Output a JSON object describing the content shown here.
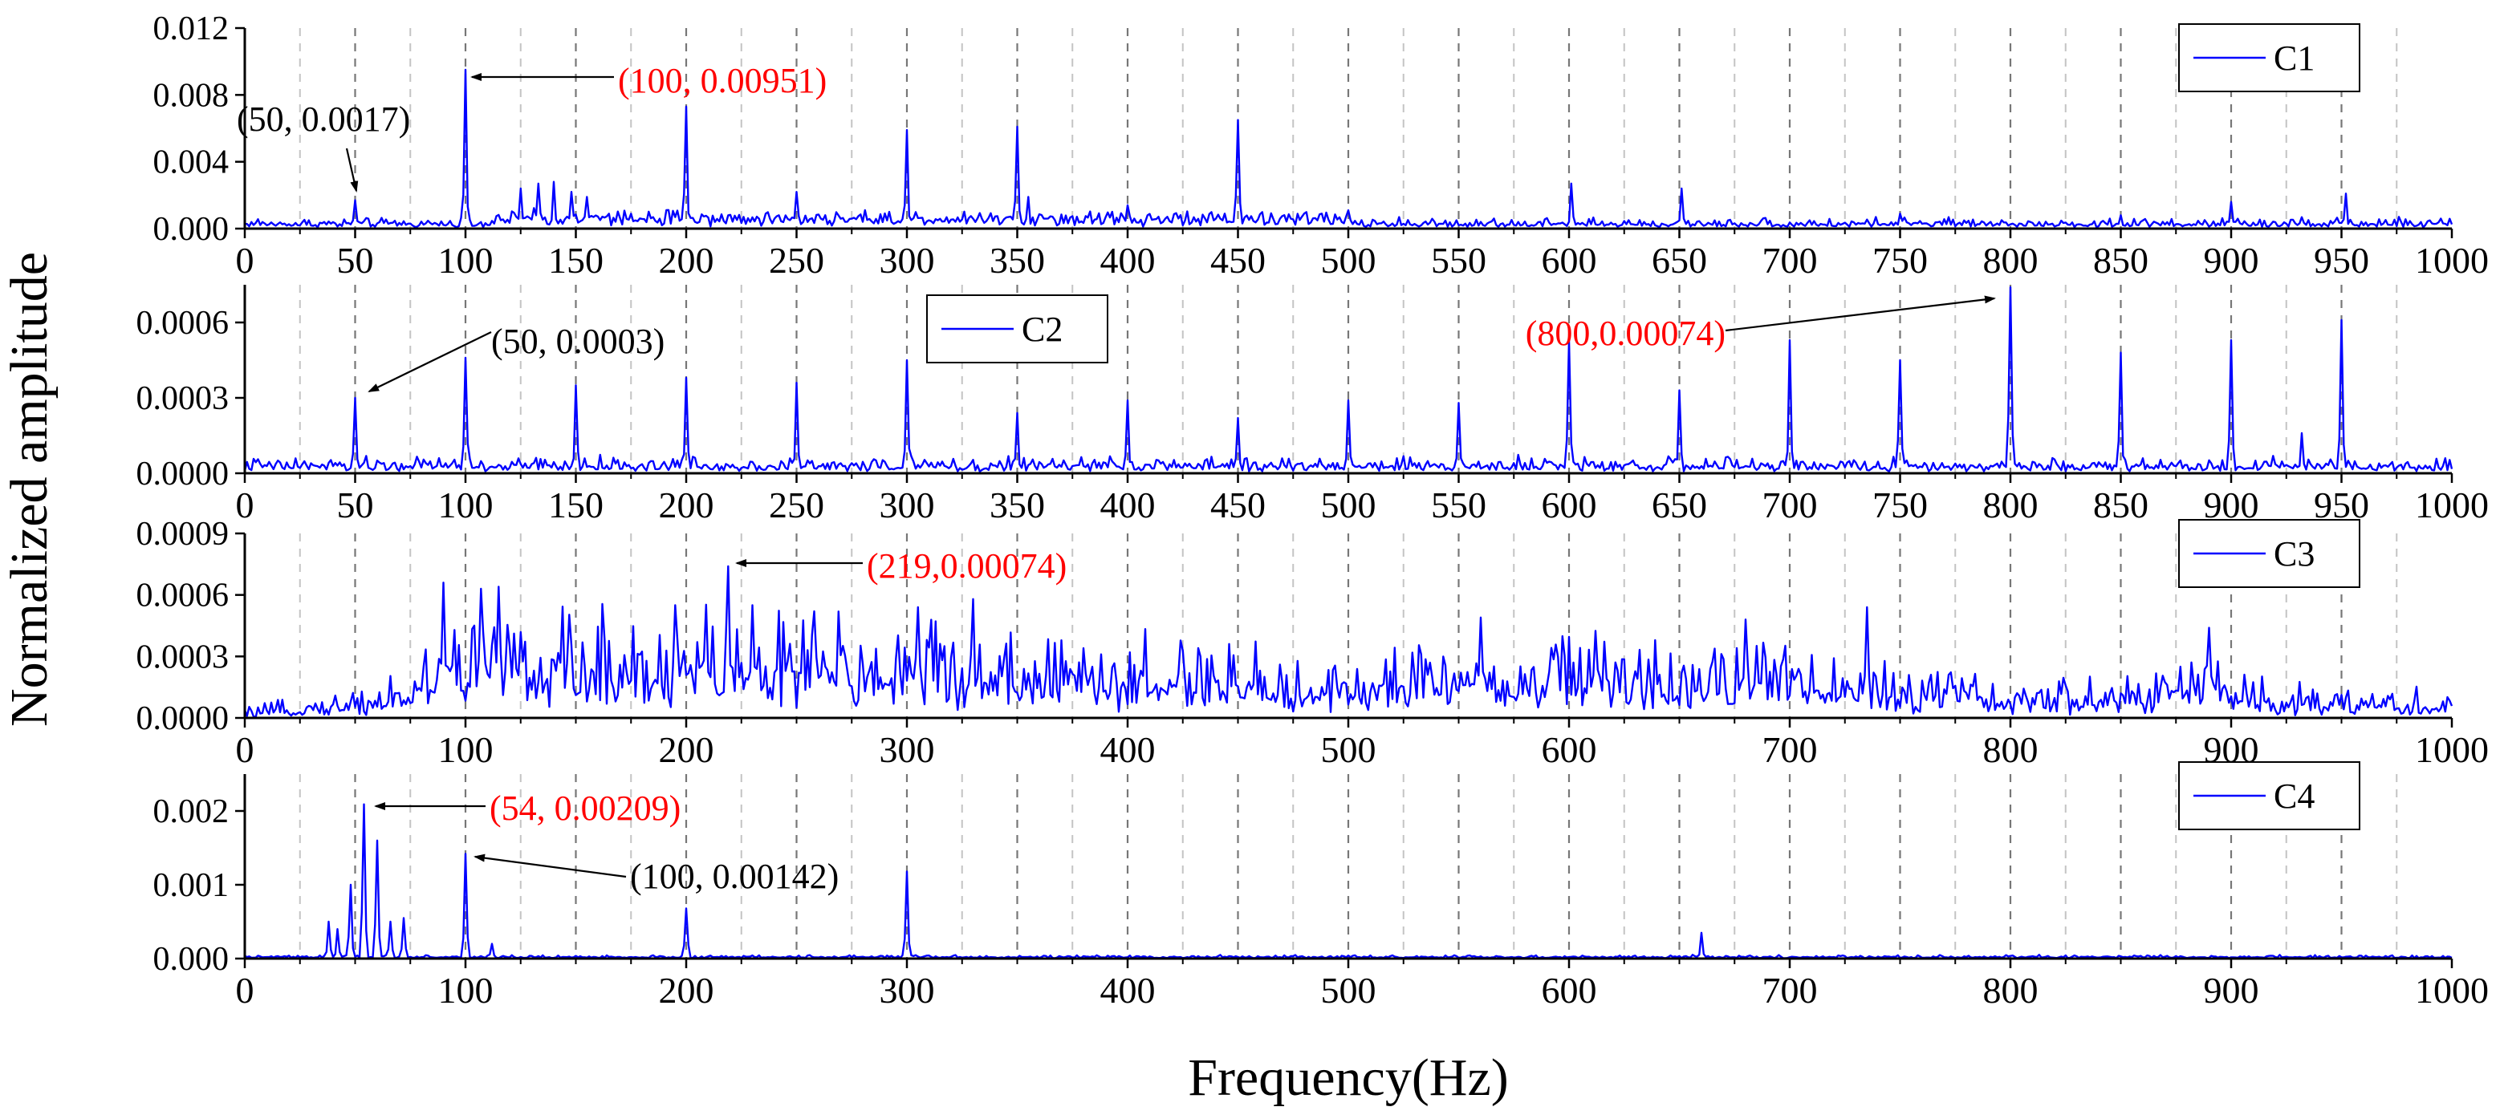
{
  "figure": {
    "ylabel": "Normalized amplitude",
    "xlabel": "Frequency(Hz)"
  },
  "colors": {
    "series": "#0000ff",
    "highlight": "#ff0000",
    "text": "#000000",
    "grid": "#888888"
  },
  "chart_data": [
    {
      "type": "line",
      "name": "C1",
      "legend": "C1",
      "legend_pos": "top-right",
      "x_range": [
        0,
        1000
      ],
      "ylim": [
        0,
        0.012
      ],
      "x_ticks": [
        "0",
        "50",
        "100",
        "150",
        "200",
        "250",
        "300",
        "350",
        "400",
        "450",
        "500",
        "550",
        "600",
        "650",
        "700",
        "750",
        "800",
        "850",
        "900",
        "950",
        "1000"
      ],
      "y_ticks": [
        "0.000",
        "0.004",
        "0.008",
        "0.012"
      ],
      "y_tick_values": [
        0,
        0.004,
        0.008,
        0.012
      ],
      "noise": 0.0007,
      "peaks": [
        [
          50,
          0.0017
        ],
        [
          100,
          0.00951
        ],
        [
          125,
          0.0024
        ],
        [
          133,
          0.0027
        ],
        [
          140,
          0.0028
        ],
        [
          148,
          0.0022
        ],
        [
          155,
          0.0019
        ],
        [
          200,
          0.0073
        ],
        [
          250,
          0.0022
        ],
        [
          300,
          0.0059
        ],
        [
          350,
          0.0061
        ],
        [
          355,
          0.0019
        ],
        [
          400,
          0.0014
        ],
        [
          450,
          0.0065
        ],
        [
          500,
          0.0011
        ],
        [
          601,
          0.0027
        ],
        [
          651,
          0.0024
        ],
        [
          750,
          0.0009
        ],
        [
          850,
          0.0008
        ],
        [
          900,
          0.0016
        ],
        [
          952,
          0.0021
        ]
      ],
      "annotations": [
        {
          "text": "(100, 0.00951)",
          "color": "red",
          "x": 100,
          "y": 0.00951
        },
        {
          "text": "(50, 0.0017)",
          "color": "black",
          "x": 50,
          "y": 0.0017
        }
      ]
    },
    {
      "type": "line",
      "name": "C2",
      "legend": "C2",
      "legend_pos": "top-center",
      "x_range": [
        0,
        1000
      ],
      "ylim": [
        0,
        0.00075
      ],
      "x_ticks": [
        "0",
        "50",
        "100",
        "150",
        "200",
        "250",
        "300",
        "350",
        "400",
        "450",
        "500",
        "550",
        "600",
        "650",
        "700",
        "750",
        "800",
        "850",
        "900",
        "950",
        "1000"
      ],
      "y_ticks": [
        "0.0000",
        "0.0003",
        "0.0006"
      ],
      "y_tick_values": [
        0,
        0.0003,
        0.0006
      ],
      "noise": 7e-05,
      "peaks": [
        [
          50,
          0.0003
        ],
        [
          100,
          0.00046
        ],
        [
          150,
          0.00035
        ],
        [
          200,
          0.00038
        ],
        [
          250,
          0.00036
        ],
        [
          300,
          0.00045
        ],
        [
          350,
          0.00024
        ],
        [
          400,
          0.00029
        ],
        [
          450,
          0.00022
        ],
        [
          500,
          0.00029
        ],
        [
          550,
          0.00028
        ],
        [
          600,
          0.00053
        ],
        [
          650,
          0.00033
        ],
        [
          700,
          0.00053
        ],
        [
          750,
          0.00045
        ],
        [
          800,
          0.00074
        ],
        [
          850,
          0.00048
        ],
        [
          900,
          0.00053
        ],
        [
          932,
          0.00016
        ],
        [
          950,
          0.00061
        ]
      ],
      "annotations": [
        {
          "text": "(50, 0.0003)",
          "color": "black",
          "x": 50,
          "y": 0.0003
        },
        {
          "text": "(800,0.00074)",
          "color": "red",
          "x": 800,
          "y": 0.00074
        }
      ]
    },
    {
      "type": "line",
      "name": "C3",
      "legend": "C3",
      "legend_pos": "top-right",
      "x_range": [
        0,
        1000
      ],
      "ylim": [
        0,
        0.0009
      ],
      "x_ticks": [
        "0",
        "100",
        "200",
        "300",
        "400",
        "500",
        "600",
        "700",
        "800",
        "900",
        "1000"
      ],
      "y_ticks": [
        "0.0000",
        "0.0003",
        "0.0006",
        "0.0009"
      ],
      "y_tick_values": [
        0,
        0.0003,
        0.0006,
        0.0009
      ],
      "envelope": [
        [
          0,
          3e-05
        ],
        [
          40,
          8e-05
        ],
        [
          70,
          0.00015
        ],
        [
          90,
          0.00035
        ],
        [
          150,
          0.00033
        ],
        [
          200,
          0.00035
        ],
        [
          300,
          0.00033
        ],
        [
          400,
          0.00025
        ],
        [
          500,
          0.00022
        ],
        [
          600,
          0.00027
        ],
        [
          700,
          0.00025
        ],
        [
          750,
          0.00018
        ],
        [
          800,
          0.00012
        ],
        [
          850,
          0.00013
        ],
        [
          880,
          0.00022
        ],
        [
          920,
          0.00012
        ],
        [
          1000,
          8e-05
        ]
      ],
      "peaks": [
        [
          90,
          0.00066
        ],
        [
          107,
          0.00063
        ],
        [
          115,
          0.00064
        ],
        [
          195,
          0.00055
        ],
        [
          219,
          0.00074
        ],
        [
          230,
          0.00055
        ],
        [
          258,
          0.00052
        ],
        [
          305,
          0.00054
        ],
        [
          330,
          0.00058
        ],
        [
          560,
          0.00049
        ],
        [
          680,
          0.00048
        ],
        [
          735,
          0.00054
        ],
        [
          890,
          0.00044
        ]
      ],
      "annotations": [
        {
          "text": "(219,0.00074)",
          "color": "red",
          "x": 219,
          "y": 0.00074
        }
      ]
    },
    {
      "type": "line",
      "name": "C4",
      "legend": "C4",
      "legend_pos": "top-right",
      "x_range": [
        0,
        1000
      ],
      "ylim": [
        0,
        0.0025
      ],
      "x_ticks": [
        "0",
        "100",
        "200",
        "300",
        "400",
        "500",
        "600",
        "700",
        "800",
        "900",
        "1000"
      ],
      "y_ticks": [
        "0.000",
        "0.001",
        "0.002"
      ],
      "y_tick_values": [
        0,
        0.001,
        0.002
      ],
      "noise": 5e-05,
      "peaks": [
        [
          38,
          0.0005
        ],
        [
          42,
          0.0004
        ],
        [
          48,
          0.001
        ],
        [
          54,
          0.00209
        ],
        [
          60,
          0.0016
        ],
        [
          66,
          0.0005
        ],
        [
          72,
          0.00055
        ],
        [
          100,
          0.00142
        ],
        [
          112,
          0.0002
        ],
        [
          200,
          0.00068
        ],
        [
          300,
          0.00118
        ],
        [
          660,
          0.00035
        ]
      ],
      "annotations": [
        {
          "text": "(54, 0.00209)",
          "color": "red",
          "x": 54,
          "y": 0.00209
        },
        {
          "text": "(100, 0.00142)",
          "color": "black",
          "x": 100,
          "y": 0.00142
        }
      ]
    }
  ]
}
